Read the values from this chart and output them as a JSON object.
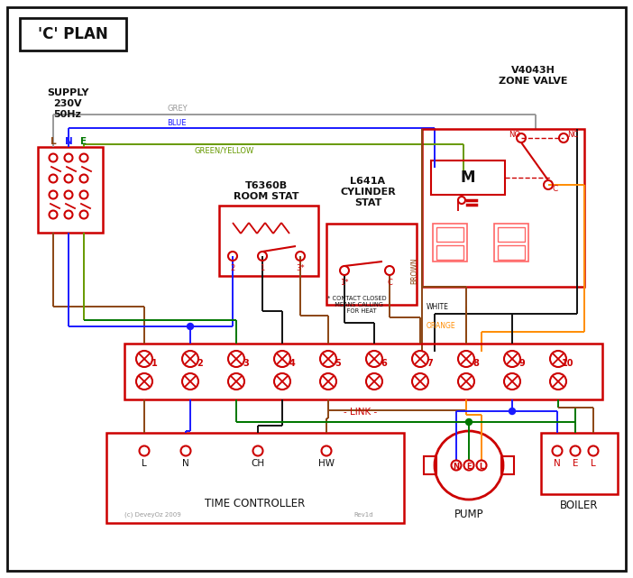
{
  "title": "'C' PLAN",
  "bg_color": "#ffffff",
  "red": "#cc0000",
  "blue": "#1a1aff",
  "green": "#007700",
  "grey": "#999999",
  "brown": "#8B4513",
  "black": "#111111",
  "orange": "#FF8C00",
  "green_yellow": "#669900",
  "pink_red": "#ff6666",
  "supply_text": "SUPPLY\n230V\n50Hz",
  "zone_valve_text": "V4043H\nZONE VALVE",
  "room_stat_text": "T6360B\nROOM STAT",
  "cyl_stat_text": "L641A\nCYLINDER\nSTAT",
  "time_ctrl_text": "TIME CONTROLLER",
  "pump_text": "PUMP",
  "boiler_text": "BOILER",
  "link_text": "LINK",
  "copyright": "(c) DeveyOz 2009",
  "rev": "Rev1d"
}
